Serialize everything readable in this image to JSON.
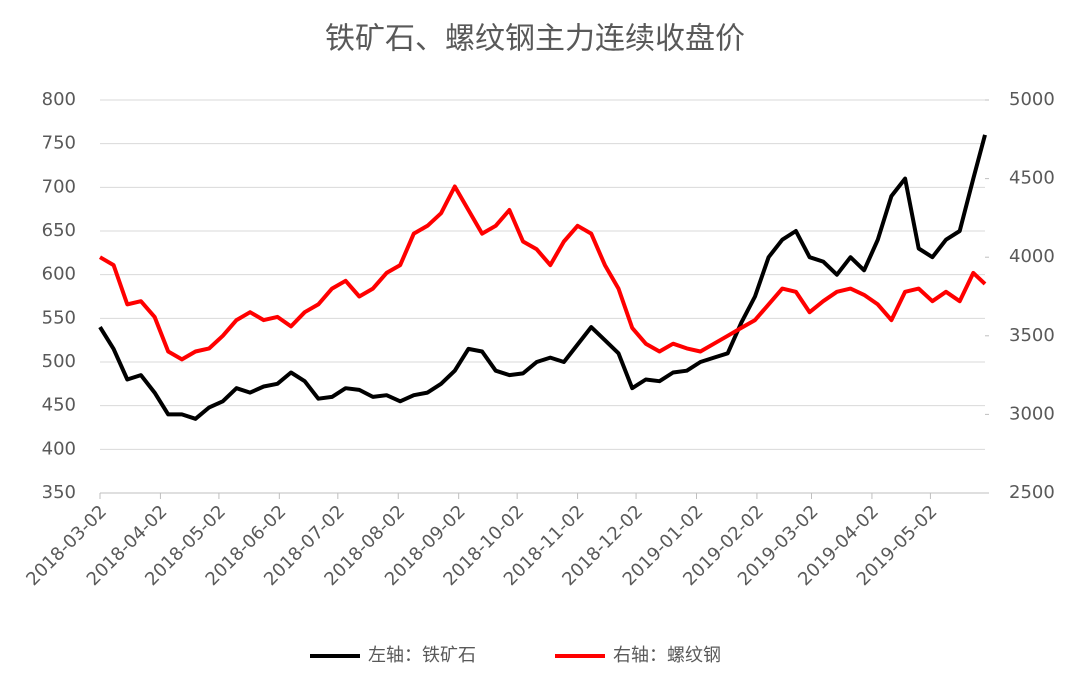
{
  "chart_data": {
    "type": "line",
    "title": "铁矿石、螺纹钢主力连续收盘价",
    "x": [
      "2018-03-02",
      "2018-03-09",
      "2018-03-16",
      "2018-03-23",
      "2018-03-30",
      "2018-04-06",
      "2018-04-13",
      "2018-04-20",
      "2018-04-27",
      "2018-05-04",
      "2018-05-11",
      "2018-05-18",
      "2018-05-25",
      "2018-06-01",
      "2018-06-08",
      "2018-06-15",
      "2018-06-22",
      "2018-06-29",
      "2018-07-06",
      "2018-07-13",
      "2018-07-20",
      "2018-07-27",
      "2018-08-03",
      "2018-08-10",
      "2018-08-17",
      "2018-08-24",
      "2018-08-31",
      "2018-09-07",
      "2018-09-14",
      "2018-09-21",
      "2018-09-28",
      "2018-10-05",
      "2018-10-12",
      "2018-10-19",
      "2018-10-26",
      "2018-11-02",
      "2018-11-09",
      "2018-11-16",
      "2018-11-23",
      "2018-11-30",
      "2018-12-07",
      "2018-12-14",
      "2018-12-21",
      "2018-12-28",
      "2019-01-04",
      "2019-01-11",
      "2019-01-18",
      "2019-01-25",
      "2019-02-01",
      "2019-02-08",
      "2019-02-15",
      "2019-02-22",
      "2019-03-01",
      "2019-03-08",
      "2019-03-15",
      "2019-03-22",
      "2019-03-29",
      "2019-04-05",
      "2019-04-12",
      "2019-04-19",
      "2019-04-26",
      "2019-05-03",
      "2019-05-10",
      "2019-05-17",
      "2019-05-24",
      "2019-05-30"
    ],
    "series": [
      {
        "name": "左轴：铁矿石",
        "color": "#000000",
        "axis": "y",
        "values": [
          540,
          515,
          480,
          485,
          465,
          440,
          440,
          435,
          448,
          455,
          470,
          465,
          472,
          475,
          488,
          478,
          458,
          460,
          470,
          468,
          460,
          462,
          455,
          462,
          465,
          475,
          490,
          515,
          512,
          490,
          485,
          487,
          500,
          505,
          500,
          520,
          540,
          525,
          510,
          470,
          480,
          478,
          488,
          490,
          500,
          505,
          510,
          545,
          575,
          620,
          640,
          650,
          620,
          615,
          600,
          620,
          605,
          640,
          690,
          710,
          630,
          620,
          640,
          650,
          710,
          760
        ]
      },
      {
        "name": "右轴：螺纹钢",
        "color": "#ff0000",
        "axis": "y2",
        "values": [
          4000,
          3950,
          3700,
          3720,
          3620,
          3400,
          3350,
          3400,
          3420,
          3500,
          3600,
          3650,
          3600,
          3620,
          3560,
          3650,
          3700,
          3800,
          3850,
          3750,
          3800,
          3900,
          3950,
          4150,
          4200,
          4280,
          4450,
          4300,
          4150,
          4200,
          4300,
          4100,
          4050,
          3950,
          4100,
          4200,
          4150,
          3950,
          3800,
          3550,
          3450,
          3400,
          3450,
          3420,
          3400,
          3450,
          3500,
          3550,
          3600,
          3700,
          3800,
          3780,
          3650,
          3720,
          3780,
          3800,
          3760,
          3700,
          3600,
          3780,
          3800,
          3720,
          3780,
          3720,
          3900,
          3830
        ]
      }
    ],
    "xlim": [
      "2018-03-02",
      "2019-05-30"
    ],
    "xticks": [
      "2018-03-02",
      "2018-04-02",
      "2018-05-02",
      "2018-06-02",
      "2018-07-02",
      "2018-08-02",
      "2018-09-02",
      "2018-10-02",
      "2018-11-02",
      "2018-12-02",
      "2019-01-02",
      "2019-02-02",
      "2019-03-02",
      "2019-04-02",
      "2019-05-02"
    ],
    "ylim": [
      350,
      800
    ],
    "yticks": [
      350,
      400,
      450,
      500,
      550,
      600,
      650,
      700,
      750,
      800
    ],
    "y2lim": [
      2500,
      5000
    ],
    "y2ticks": [
      2500,
      3000,
      3500,
      4000,
      4500,
      5000
    ],
    "grid": true,
    "legend": "bottom"
  }
}
